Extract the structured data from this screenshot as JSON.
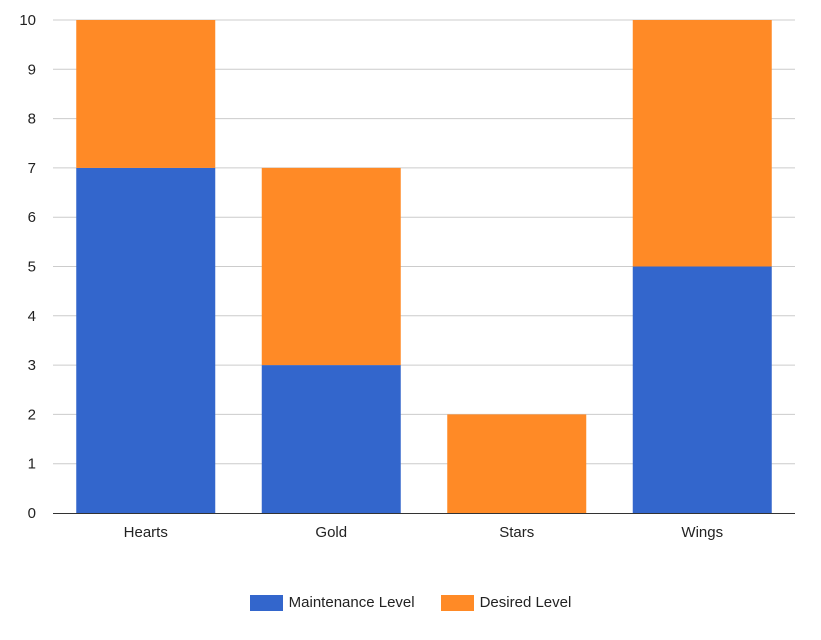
{
  "chart_data": {
    "type": "bar",
    "stacked": true,
    "categories": [
      "Hearts",
      "Gold",
      "Stars",
      "Wings"
    ],
    "series": [
      {
        "name": "Maintenance Level",
        "values": [
          7,
          3,
          0,
          5
        ],
        "color": "#3366cc"
      },
      {
        "name": "Desired Level",
        "values": [
          3,
          4,
          2,
          5
        ],
        "color": "#ff8a26"
      }
    ],
    "title": "",
    "xlabel": "",
    "ylabel": "",
    "ylim": [
      0,
      10
    ],
    "yticks": [
      "0",
      "1",
      "2",
      "3",
      "4",
      "5",
      "6",
      "7",
      "8",
      "9",
      "10"
    ],
    "grid": true,
    "legend_position": "bottom"
  }
}
